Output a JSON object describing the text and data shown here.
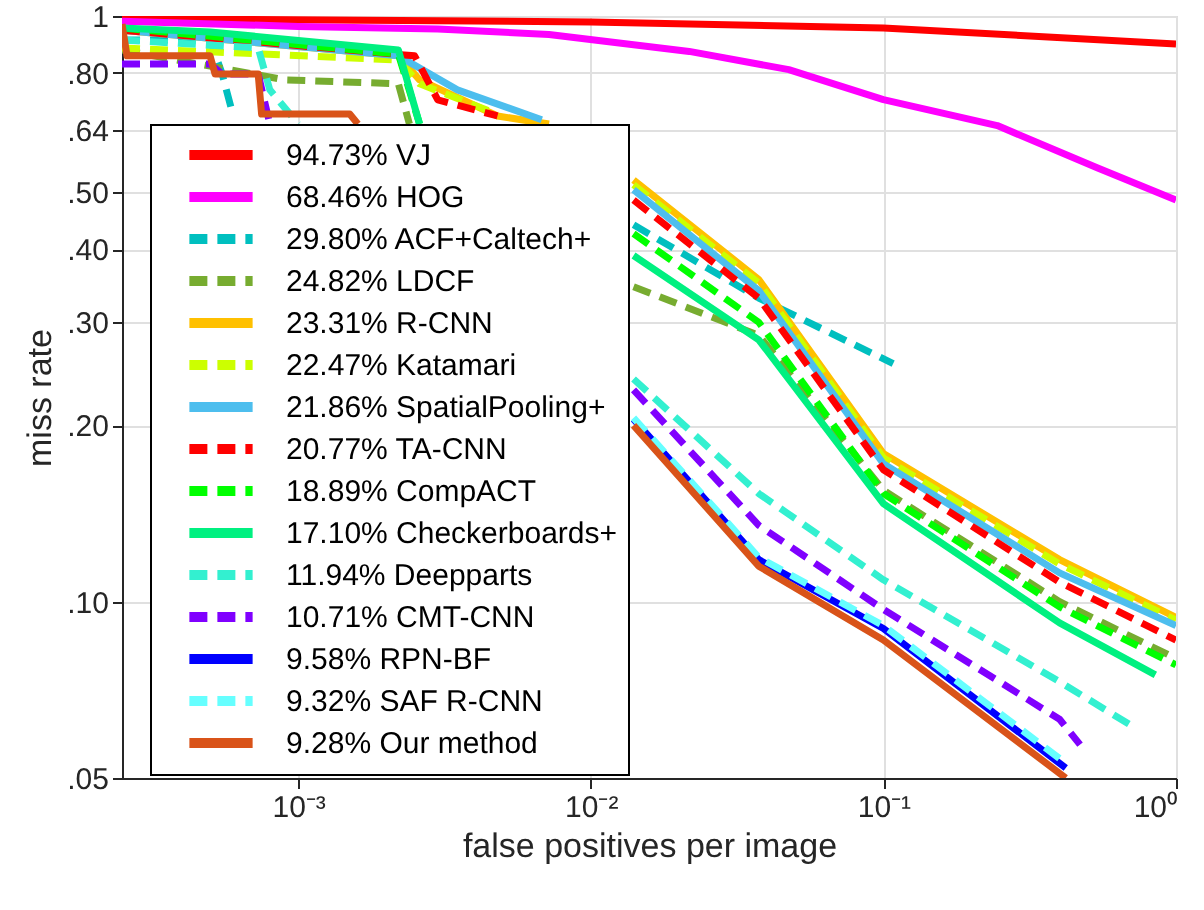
{
  "chart_data": {
    "type": "line",
    "xlabel": "false positives per image",
    "ylabel": "miss rate",
    "log": "xy",
    "grid": true,
    "legend": "left",
    "xlim": [
      0.00025,
      1
    ],
    "ylim": [
      0.05,
      1
    ],
    "xticks": [
      {
        "value": 0.001,
        "label": "10⁻³"
      },
      {
        "value": 0.01,
        "label": "10⁻²"
      },
      {
        "value": 0.1,
        "label": "10⁻¹"
      },
      {
        "value": 1,
        "label": "10⁰"
      }
    ],
    "yticks": [
      {
        "value": 0.05,
        "label": ".05"
      },
      {
        "value": 0.1,
        "label": ".10"
      },
      {
        "value": 0.2,
        "label": ".20"
      },
      {
        "value": 0.3,
        "label": ".30"
      },
      {
        "value": 0.4,
        "label": ".40"
      },
      {
        "value": 0.5,
        "label": ".50"
      },
      {
        "value": 0.64,
        "label": ".64"
      },
      {
        "value": 0.8,
        "label": ".80"
      },
      1
    ],
    "series": [
      {
        "name": "94.73% VJ",
        "color": "#ff0000",
        "line_style": "solid",
        "x": [
          0.00025,
          0.01,
          0.1,
          1
        ],
        "values": [
          0.99,
          0.977,
          0.954,
          0.896
        ]
      },
      {
        "name": "68.46% HOG",
        "color": "#ff00ff",
        "line_style": "solid",
        "x": [
          0.00025,
          0.001,
          0.003,
          0.0072,
          0.0217,
          0.0475,
          0.1,
          0.245,
          0.54,
          1
        ],
        "values": [
          0.98,
          0.96,
          0.95,
          0.93,
          0.87,
          0.81,
          0.72,
          0.65,
          0.55,
          0.485
        ]
      },
      {
        "name": "29.80% ACF+Caltech+",
        "color": "#00bfbf",
        "line_style": "dashed",
        "x": [
          0.00025,
          0.0005,
          0.00055,
          0.0006,
          null,
          0.014,
          0.0375,
          0.108
        ],
        "values": [
          0.91,
          0.91,
          0.796,
          0.675,
          null,
          0.44,
          0.33,
          0.255
        ]
      },
      {
        "name": "24.82% LDCF",
        "color": "#77ac30",
        "line_style": "dashed",
        "x": [
          0.00025,
          0.0009,
          0.0022,
          0.0024,
          null,
          0.014,
          0.0375,
          0.1,
          0.4,
          1
        ],
        "values": [
          0.875,
          0.778,
          0.766,
          0.654,
          null,
          0.345,
          0.285,
          0.155,
          0.1,
          0.08
        ]
      },
      {
        "name": "23.31% R-CNN",
        "color": "#ffc000",
        "line_style": "solid",
        "x": [
          0.00025,
          0.0022,
          0.0026,
          0.0048,
          0.0072,
          null,
          0.014,
          0.0375,
          0.1,
          0.4,
          1
        ],
        "values": [
          0.946,
          0.855,
          0.778,
          0.675,
          0.654,
          null,
          0.525,
          0.355,
          0.179,
          0.118,
          0.094
        ]
      },
      {
        "name": "22.47% Katamari",
        "color": "#ccff00",
        "line_style": "dashed",
        "x": [
          0.00025,
          0.0022,
          0.0026,
          0.0048,
          null,
          0.014,
          0.0375,
          0.1,
          0.4,
          1
        ],
        "values": [
          0.882,
          0.841,
          0.766,
          0.68,
          null,
          0.515,
          0.35,
          0.176,
          0.116,
          0.093
        ]
      },
      {
        "name": "21.86% SpatialPooling+",
        "color": "#4dbeee",
        "line_style": "solid",
        "x": [
          0.00025,
          0.0022,
          0.0035,
          0.0068,
          null,
          0.014,
          0.0375,
          0.1,
          0.4,
          1
        ],
        "values": [
          0.946,
          0.855,
          0.748,
          0.665,
          null,
          0.505,
          0.34,
          0.172,
          0.112,
          0.091
        ]
      },
      {
        "name": "20.77% TA-CNN",
        "color": "#ff0000",
        "line_style": "dashed",
        "x": [
          0.00025,
          0.0025,
          0.003,
          0.0048,
          null,
          0.014,
          0.0375,
          0.1,
          0.4,
          1
        ],
        "values": [
          0.946,
          0.855,
          0.719,
          0.675,
          null,
          0.485,
          0.33,
          0.168,
          0.108,
          0.086
        ]
      },
      {
        "name": "18.89% CompACT",
        "color": "#00ff00",
        "line_style": "dashed",
        "x": [
          0.00025,
          0.0022,
          0.0026,
          null,
          0.014,
          0.0375,
          0.1,
          0.4,
          1
        ],
        "values": [
          0.954,
          0.861,
          0.654,
          null,
          0.425,
          0.3,
          0.153,
          0.098,
          0.078
        ]
      },
      {
        "name": "17.10% Checkerboards+",
        "color": "#00f080",
        "line_style": "solid",
        "x": [
          0.00025,
          0.0005,
          0.0022,
          0.0026,
          null,
          0.014,
          0.0375,
          0.1,
          0.4,
          0.85
        ],
        "values": [
          0.954,
          0.939,
          0.875,
          0.654,
          null,
          0.39,
          0.28,
          0.147,
          0.092,
          0.075
        ]
      },
      {
        "name": "11.94% Deepparts",
        "color": "#33f0d0",
        "line_style": "dashed",
        "x": [
          0.00025,
          0.00073,
          0.0008,
          0.001,
          null,
          0.014,
          0.0375,
          0.1,
          0.4,
          0.72
        ],
        "values": [
          0.91,
          0.882,
          0.748,
          0.654,
          null,
          0.24,
          0.153,
          0.109,
          0.073,
          0.061
        ]
      },
      {
        "name": "10.71% CMT-CNN",
        "color": "#8000ff",
        "line_style": "dashed",
        "x": [
          0.00025,
          0.0005,
          0.00055,
          0.00073,
          0.0008,
          null,
          0.014,
          0.0375,
          0.1,
          0.4,
          0.47
        ],
        "values": [
          0.828,
          0.828,
          0.796,
          0.796,
          0.654,
          null,
          0.23,
          0.135,
          0.097,
          0.063,
          0.057
        ]
      },
      {
        "name": "9.58% RPN-BF",
        "color": "#0000ff",
        "line_style": "solid",
        "x": [
          0.014,
          0.0375,
          0.1,
          0.42
        ],
        "values": [
          0.205,
          0.118,
          0.09,
          0.052
        ]
      },
      {
        "name": "9.32% SAF R-CNN",
        "color": "#66ffff",
        "line_style": "dashed",
        "x": [
          0.014,
          0.0375,
          0.1,
          0.42
        ],
        "values": [
          0.206,
          0.119,
          0.091,
          0.053
        ]
      },
      {
        "name": "9.28% Our method",
        "color": "#d95319",
        "line_style": "solid",
        "x": [
          0.00025,
          0.00026,
          0.0005,
          0.00052,
          0.00073,
          0.00075,
          0.0015,
          0.0016,
          null,
          0.014,
          0.0375,
          0.1,
          0.42
        ],
        "values": [
          0.969,
          0.855,
          0.855,
          0.796,
          0.796,
          0.68,
          0.68,
          0.654,
          null,
          0.2,
          0.115,
          0.086,
          0.05
        ]
      }
    ]
  }
}
